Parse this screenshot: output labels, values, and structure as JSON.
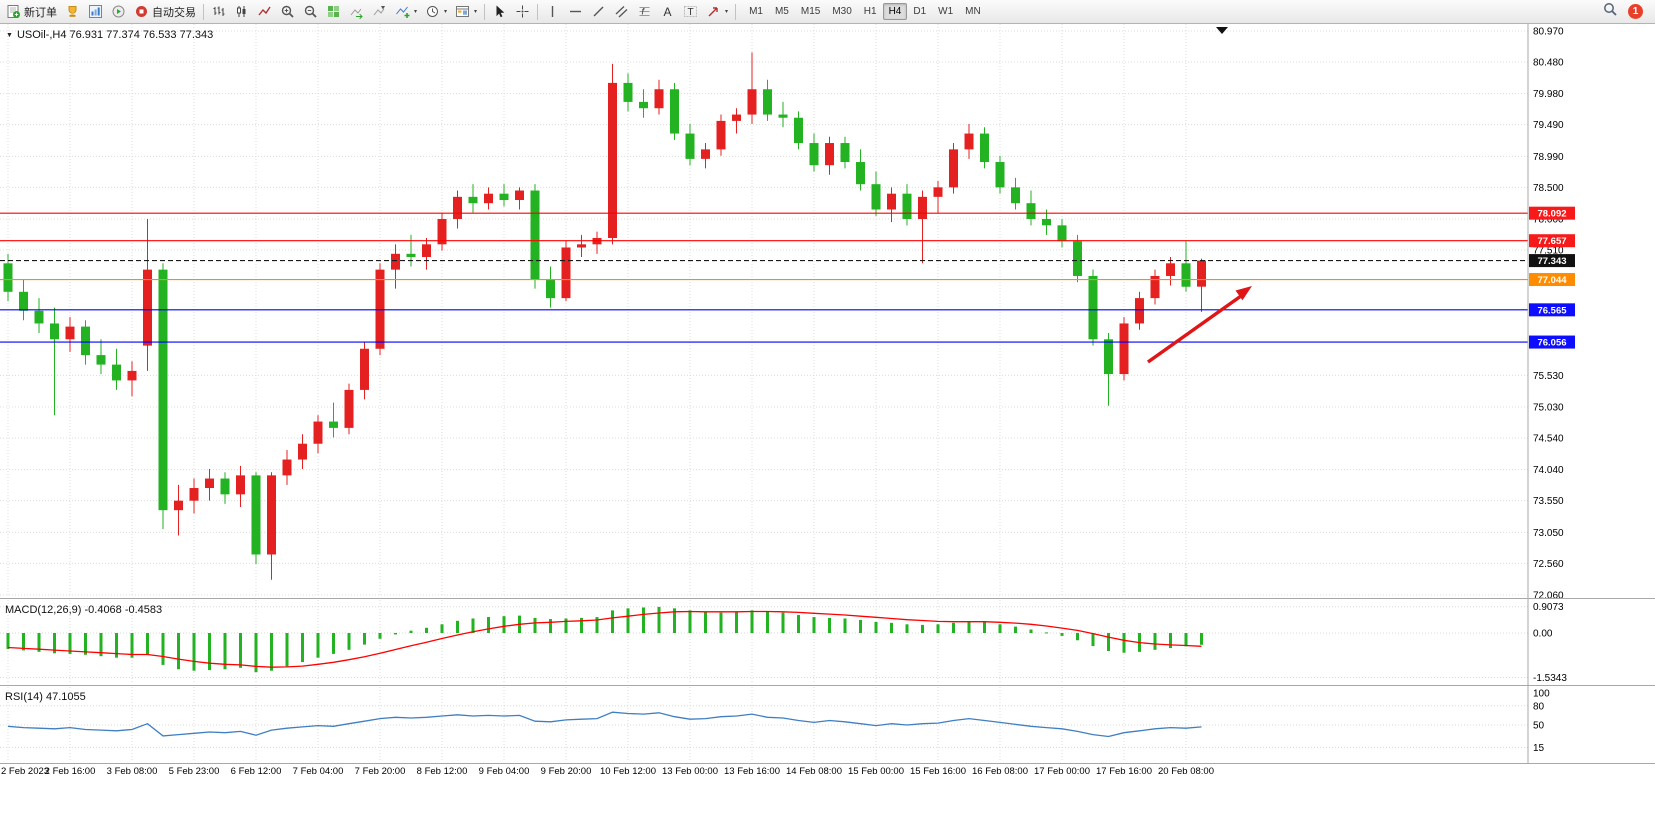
{
  "toolbar": {
    "new_order": "新订单",
    "auto_trading": "自动交易",
    "timeframes": [
      "M1",
      "M5",
      "M15",
      "M30",
      "H1",
      "H4",
      "D1",
      "W1",
      "MN"
    ],
    "active_timeframe": "H4",
    "notification_count": "1",
    "icon_names": [
      "new-order-icon",
      "market-watch-icon",
      "data-window-icon",
      "strategy-tester-icon",
      "auto-trading-icon",
      "bar-chart-icon",
      "candlestick-icon",
      "line-chart-icon",
      "zoom-in-icon",
      "zoom-out-icon",
      "tile-windows-icon",
      "auto-scroll-icon",
      "chart-shift-icon",
      "indicators-icon",
      "periods-icon",
      "templates-icon",
      "cursor-icon",
      "crosshair-icon",
      "vertical-line-icon",
      "horizontal-line-icon",
      "trendline-icon",
      "channel-icon",
      "fibonacci-icon",
      "text-icon",
      "label-icon",
      "shapes-icon",
      "search-icon"
    ]
  },
  "chart": {
    "title": "USOil-,H4 76.931 77.374 76.533 77.343",
    "price_axis_labels": [
      "80.970",
      "80.480",
      "79.980",
      "79.490",
      "78.990",
      "78.500",
      "78.000",
      "77.510",
      "75.530",
      "75.030",
      "74.540",
      "74.040",
      "73.550",
      "73.050",
      "72.560",
      "72.060"
    ],
    "levels": [
      {
        "label": "78.092",
        "value": 78.092,
        "line_color": "#ff0000",
        "badge_color": "#f61a1a",
        "style": "solid"
      },
      {
        "label": "77.657",
        "value": 77.657,
        "line_color": "#ff0000",
        "badge_color": "#f61a1a",
        "style": "solid"
      },
      {
        "label": "77.343",
        "value": 77.343,
        "line_color": "#1a1a1a",
        "badge_color": "#111111",
        "style": "dash"
      },
      {
        "label": "77.044",
        "value": 77.044,
        "line_color": "#ff8c00",
        "badge_color": "#ff8c00",
        "style": "solid"
      },
      {
        "label": "76.565",
        "value": 76.565,
        "line_color": "#0000ff",
        "badge_color": "#0d0dff",
        "style": "solid"
      },
      {
        "label": "76.056",
        "value": 76.056,
        "line_color": "#0000ff",
        "badge_color": "#0d0dff",
        "style": "solid"
      }
    ],
    "annotation_arrow_color": "#e01515"
  },
  "chart_data": {
    "type": "candlestick",
    "symbol": "USOil",
    "period": "H4",
    "ylim": [
      72.06,
      80.97
    ],
    "up_color": "#e42020",
    "down_color": "#22b222",
    "bars_per_label": 4,
    "x_labels": [
      "2 Feb 2023",
      "2 Feb 16:00",
      "3 Feb 08:00",
      "5 Feb 23:00",
      "6 Feb 12:00",
      "7 Feb 04:00",
      "7 Feb 20:00",
      "8 Feb 12:00",
      "9 Feb 04:00",
      "9 Feb 20:00",
      "10 Feb 12:00",
      "13 Feb 00:00",
      "13 Feb 16:00",
      "14 Feb 08:00",
      "15 Feb 00:00",
      "15 Feb 16:00",
      "16 Feb 08:00",
      "17 Feb 00:00",
      "17 Feb 16:00",
      "20 Feb 08:00"
    ],
    "ohlc": [
      [
        77.3,
        77.45,
        76.7,
        76.85
      ],
      [
        76.85,
        77.05,
        76.4,
        76.55
      ],
      [
        76.55,
        76.75,
        76.2,
        76.35
      ],
      [
        76.35,
        76.6,
        74.9,
        76.1
      ],
      [
        76.1,
        76.45,
        75.9,
        76.3
      ],
      [
        76.3,
        76.4,
        75.7,
        75.85
      ],
      [
        75.85,
        76.1,
        75.55,
        75.7
      ],
      [
        75.7,
        75.95,
        75.3,
        75.45
      ],
      [
        75.45,
        75.75,
        75.2,
        75.6
      ],
      [
        76.0,
        78.0,
        75.6,
        77.2
      ],
      [
        77.2,
        77.3,
        73.1,
        73.4
      ],
      [
        73.4,
        73.8,
        73.0,
        73.55
      ],
      [
        73.55,
        73.9,
        73.35,
        73.75
      ],
      [
        73.75,
        74.05,
        73.55,
        73.9
      ],
      [
        73.9,
        74.0,
        73.5,
        73.65
      ],
      [
        73.65,
        74.1,
        73.45,
        73.95
      ],
      [
        73.95,
        74.0,
        72.55,
        72.7
      ],
      [
        72.7,
        74.0,
        72.3,
        73.95
      ],
      [
        73.95,
        74.35,
        73.8,
        74.2
      ],
      [
        74.2,
        74.6,
        74.05,
        74.45
      ],
      [
        74.45,
        74.9,
        74.3,
        74.8
      ],
      [
        74.8,
        75.1,
        74.55,
        74.7
      ],
      [
        74.7,
        75.4,
        74.6,
        75.3
      ],
      [
        75.3,
        76.05,
        75.15,
        75.95
      ],
      [
        75.95,
        77.3,
        75.85,
        77.2
      ],
      [
        77.2,
        77.6,
        76.9,
        77.45
      ],
      [
        77.45,
        77.75,
        77.25,
        77.4
      ],
      [
        77.4,
        77.7,
        77.2,
        77.6
      ],
      [
        77.6,
        78.1,
        77.5,
        78.0
      ],
      [
        78.0,
        78.45,
        77.85,
        78.35
      ],
      [
        78.35,
        78.55,
        78.1,
        78.25
      ],
      [
        78.25,
        78.5,
        78.15,
        78.4
      ],
      [
        78.4,
        78.55,
        78.2,
        78.3
      ],
      [
        78.3,
        78.5,
        78.15,
        78.45
      ],
      [
        78.45,
        78.55,
        76.9,
        77.05
      ],
      [
        77.05,
        77.25,
        76.6,
        76.75
      ],
      [
        76.75,
        77.65,
        76.7,
        77.55
      ],
      [
        77.55,
        77.75,
        77.4,
        77.6
      ],
      [
        77.6,
        77.8,
        77.45,
        77.7
      ],
      [
        77.7,
        80.45,
        77.6,
        80.15
      ],
      [
        80.15,
        80.3,
        79.7,
        79.85
      ],
      [
        79.85,
        80.05,
        79.6,
        79.75
      ],
      [
        79.75,
        80.2,
        79.65,
        80.05
      ],
      [
        80.05,
        80.15,
        79.25,
        79.35
      ],
      [
        79.35,
        79.5,
        78.85,
        78.95
      ],
      [
        78.95,
        79.2,
        78.8,
        79.1
      ],
      [
        79.1,
        79.65,
        79.0,
        79.55
      ],
      [
        79.55,
        79.75,
        79.35,
        79.65
      ],
      [
        79.65,
        80.63,
        79.5,
        80.05
      ],
      [
        80.05,
        80.2,
        79.55,
        79.65
      ],
      [
        79.65,
        79.85,
        79.45,
        79.6
      ],
      [
        79.6,
        79.7,
        79.1,
        79.2
      ],
      [
        79.2,
        79.35,
        78.75,
        78.85
      ],
      [
        78.85,
        79.3,
        78.7,
        79.2
      ],
      [
        79.2,
        79.3,
        78.8,
        78.9
      ],
      [
        78.9,
        79.1,
        78.45,
        78.55
      ],
      [
        78.55,
        78.75,
        78.05,
        78.15
      ],
      [
        78.15,
        78.5,
        77.95,
        78.4
      ],
      [
        78.4,
        78.55,
        77.9,
        78.0
      ],
      [
        78.0,
        78.45,
        77.3,
        78.35
      ],
      [
        78.35,
        78.6,
        78.1,
        78.5
      ],
      [
        78.5,
        79.2,
        78.4,
        79.1
      ],
      [
        79.1,
        79.5,
        78.95,
        79.35
      ],
      [
        79.35,
        79.45,
        78.8,
        78.9
      ],
      [
        78.9,
        79.0,
        78.4,
        78.5
      ],
      [
        78.5,
        78.65,
        78.15,
        78.25
      ],
      [
        78.25,
        78.45,
        77.9,
        78.0
      ],
      [
        78.0,
        78.15,
        77.75,
        77.9
      ],
      [
        77.9,
        78.0,
        77.55,
        77.65
      ],
      [
        77.65,
        77.75,
        77.0,
        77.1
      ],
      [
        77.1,
        77.2,
        76.0,
        76.1
      ],
      [
        76.1,
        76.2,
        75.05,
        75.55
      ],
      [
        75.55,
        76.45,
        75.45,
        76.35
      ],
      [
        76.35,
        76.85,
        76.25,
        76.75
      ],
      [
        76.75,
        77.2,
        76.65,
        77.1
      ],
      [
        77.1,
        77.4,
        76.95,
        77.3
      ],
      [
        77.3,
        77.65,
        76.85,
        76.93
      ],
      [
        76.931,
        77.374,
        76.533,
        77.343
      ]
    ],
    "indicators": [
      {
        "name": "MACD",
        "label": "MACD(12,26,9)",
        "values_text": "-0.4068 -0.4583",
        "axis_labels": [
          "0.9073",
          "0.00",
          "-1.5343"
        ],
        "histogram_color": "#22b222",
        "signal_color": "#ff0000",
        "histogram": [
          -0.55,
          -0.6,
          -0.65,
          -0.7,
          -0.72,
          -0.75,
          -0.8,
          -0.85,
          -0.85,
          -0.75,
          -1.1,
          -1.25,
          -1.3,
          -1.28,
          -1.25,
          -1.2,
          -1.35,
          -1.3,
          -1.15,
          -1.0,
          -0.85,
          -0.72,
          -0.58,
          -0.4,
          -0.2,
          -0.05,
          0.08,
          0.18,
          0.3,
          0.42,
          0.5,
          0.55,
          0.58,
          0.6,
          0.52,
          0.48,
          0.5,
          0.52,
          0.55,
          0.78,
          0.85,
          0.88,
          0.9,
          0.85,
          0.78,
          0.72,
          0.7,
          0.72,
          0.78,
          0.75,
          0.7,
          0.62,
          0.55,
          0.52,
          0.5,
          0.45,
          0.38,
          0.35,
          0.3,
          0.28,
          0.3,
          0.35,
          0.4,
          0.38,
          0.3,
          0.22,
          0.12,
          0.02,
          -0.1,
          -0.25,
          -0.45,
          -0.62,
          -0.68,
          -0.65,
          -0.58,
          -0.52,
          -0.46,
          -0.4068
        ],
        "signal": [
          -0.5,
          -0.53,
          -0.56,
          -0.59,
          -0.62,
          -0.65,
          -0.68,
          -0.71,
          -0.74,
          -0.74,
          -0.81,
          -0.9,
          -0.98,
          -1.04,
          -1.08,
          -1.1,
          -1.15,
          -1.18,
          -1.17,
          -1.14,
          -1.08,
          -1.01,
          -0.92,
          -0.82,
          -0.7,
          -0.57,
          -0.44,
          -0.32,
          -0.19,
          -0.07,
          0.04,
          0.14,
          0.23,
          0.3,
          0.35,
          0.37,
          0.4,
          0.42,
          0.45,
          0.52,
          0.58,
          0.64,
          0.69,
          0.73,
          0.74,
          0.73,
          0.73,
          0.73,
          0.74,
          0.74,
          0.73,
          0.71,
          0.68,
          0.65,
          0.62,
          0.58,
          0.54,
          0.5,
          0.46,
          0.43,
          0.4,
          0.39,
          0.39,
          0.39,
          0.37,
          0.34,
          0.3,
          0.24,
          0.17,
          0.09,
          -0.02,
          -0.14,
          -0.25,
          -0.33,
          -0.38,
          -0.41,
          -0.43,
          -0.4583
        ]
      },
      {
        "name": "RSI",
        "label": "RSI(14)",
        "value_text": "47.1055",
        "axis_labels": [
          "100",
          "80",
          "50",
          "15"
        ],
        "level_lines": [
          80,
          50,
          15
        ],
        "line_color": "#3f7fc1",
        "values": [
          48,
          46,
          45,
          44,
          46,
          43,
          42,
          41,
          43,
          52,
          33,
          35,
          37,
          39,
          38,
          40,
          34,
          42,
          45,
          47,
          49,
          48,
          52,
          56,
          60,
          62,
          61,
          62,
          64,
          66,
          64,
          65,
          64,
          65,
          56,
          55,
          58,
          59,
          60,
          70,
          68,
          67,
          69,
          63,
          59,
          60,
          63,
          64,
          67,
          62,
          61,
          57,
          54,
          57,
          55,
          52,
          49,
          52,
          50,
          52,
          53,
          57,
          60,
          57,
          54,
          51,
          48,
          46,
          44,
          40,
          35,
          32,
          38,
          41,
          44,
          46,
          45,
          47.1055
        ]
      }
    ]
  }
}
